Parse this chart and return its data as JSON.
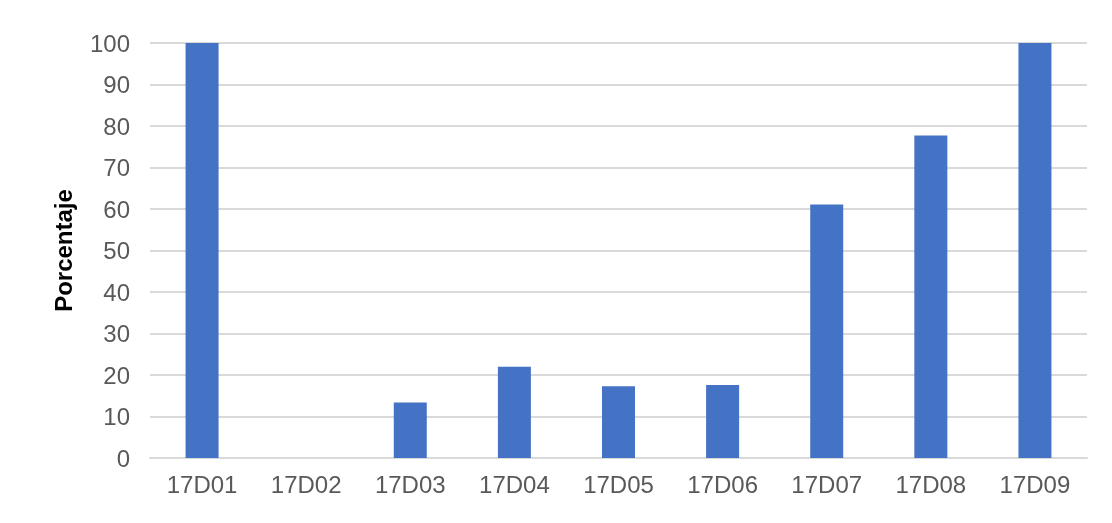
{
  "chart_data": {
    "type": "bar",
    "ylabel": "Porcentaje",
    "categories": [
      "17D01",
      "17D02",
      "17D03",
      "17D04",
      "17D05",
      "17D06",
      "17D07",
      "17D08",
      "17D09"
    ],
    "values": [
      100,
      0,
      13.4,
      22,
      17.3,
      17.6,
      61.1,
      77.7,
      100
    ],
    "color": "#4472c4",
    "ylim": [
      0,
      100
    ],
    "yticks": [
      0,
      10,
      20,
      30,
      40,
      50,
      60,
      70,
      80,
      90,
      100
    ],
    "grid": "y"
  }
}
